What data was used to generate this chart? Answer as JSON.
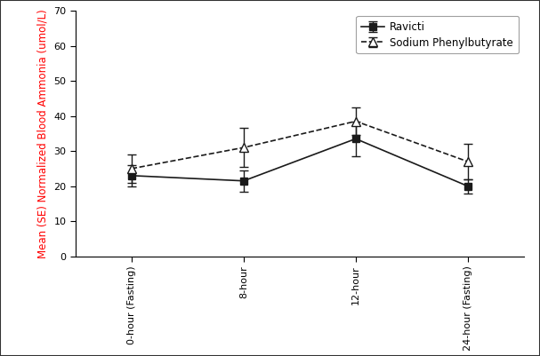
{
  "x_labels": [
    "0-hour (Fasting)",
    "8-hour",
    "12-hour",
    "24-hour (Fasting)"
  ],
  "x_positions": [
    0,
    1,
    2,
    3
  ],
  "ravicti_means": [
    23.0,
    21.5,
    33.5,
    20.0
  ],
  "ravicti_errors": [
    3.0,
    3.0,
    5.0,
    2.0
  ],
  "sodium_pb_means": [
    25.0,
    31.0,
    38.5,
    27.0
  ],
  "sodium_pb_errors": [
    4.0,
    5.5,
    4.0,
    5.0
  ],
  "ravicti_color": "#1a1a1a",
  "sodium_pb_color": "#1a1a1a",
  "ravicti_label": "Ravicti",
  "sodium_pb_label": "Sodium Phenylbutyrate",
  "ylabel": "Mean (SE) Normalized Blood Ammonia (umol/L)",
  "ylim": [
    0,
    70
  ],
  "yticks": [
    0,
    10,
    20,
    30,
    40,
    50,
    60,
    70
  ],
  "background_color": "#ffffff",
  "border_color": "#000000",
  "legend_fontsize": 8.5,
  "axis_label_fontsize": 8.5,
  "tick_fontsize": 8.0,
  "ylabel_color": "red",
  "figure_border_color": "#555555",
  "figure_border_linewidth": 1.5
}
